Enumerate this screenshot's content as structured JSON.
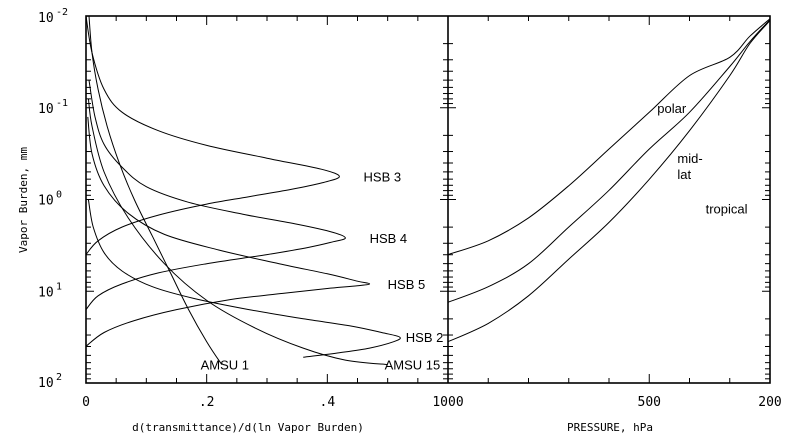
{
  "chart_data": [
    {
      "type": "line",
      "panel": "left",
      "xlabel": "d(transmittance)/d(ln Vapor Burden)",
      "ylabel": "Vapor Burden, mm",
      "xlim": [
        0,
        0.6
      ],
      "ylim_log10": [
        -2,
        2
      ],
      "y_scale": "log",
      "x_ticks": [
        {
          "value": 0,
          "label": "0"
        },
        {
          "value": 0.2,
          "label": ".2"
        },
        {
          "value": 0.4,
          "label": ".4"
        }
      ],
      "y_ticks": [
        {
          "value_log10": -2,
          "base": "10",
          "exp": "-2"
        },
        {
          "value_log10": -1,
          "base": "10",
          "exp": "-1"
        },
        {
          "value_log10": 0,
          "base": "10",
          "exp": "0"
        },
        {
          "value_log10": 1,
          "base": "10",
          "exp": "1"
        },
        {
          "value_log10": 2,
          "base": "10",
          "exp": "2"
        }
      ],
      "series": [
        {
          "name": "AMSU 1",
          "label_at": [
            0.19,
            1.8
          ],
          "points": [
            [
              0.005,
              -2.0
            ],
            [
              0.01,
              -1.6
            ],
            [
              0.02,
              -1.2
            ],
            [
              0.035,
              -0.8
            ],
            [
              0.055,
              -0.4
            ],
            [
              0.08,
              0.0
            ],
            [
              0.11,
              0.4
            ],
            [
              0.14,
              0.8
            ],
            [
              0.17,
              1.2
            ],
            [
              0.2,
              1.55
            ],
            [
              0.225,
              1.8
            ]
          ]
        },
        {
          "name": "AMSU 15",
          "label_at": [
            0.495,
            1.8
          ],
          "points": [
            [
              0.004,
              -1.1
            ],
            [
              0.01,
              -0.8
            ],
            [
              0.03,
              -0.3
            ],
            [
              0.07,
              0.2
            ],
            [
              0.13,
              0.7
            ],
            [
              0.2,
              1.1
            ],
            [
              0.28,
              1.4
            ],
            [
              0.36,
              1.62
            ],
            [
              0.43,
              1.75
            ],
            [
              0.5,
              1.8
            ]
          ]
        },
        {
          "name": "HSB 3",
          "label_at": [
            0.46,
            -0.25
          ],
          "points": [
            [
              0.0,
              0.6
            ],
            [
              0.02,
              0.45
            ],
            [
              0.06,
              0.3
            ],
            [
              0.12,
              0.17
            ],
            [
              0.2,
              0.05
            ],
            [
              0.27,
              -0.03
            ],
            [
              0.34,
              -0.11
            ],
            [
              0.39,
              -0.18
            ],
            [
              0.42,
              -0.25
            ],
            [
              0.39,
              -0.33
            ],
            [
              0.3,
              -0.45
            ],
            [
              0.2,
              -0.59
            ],
            [
              0.12,
              -0.75
            ],
            [
              0.06,
              -0.95
            ],
            [
              0.03,
              -1.2
            ],
            [
              0.01,
              -1.6
            ],
            [
              0.0,
              -2.0
            ]
          ]
        },
        {
          "name": "HSB 4",
          "label_at": [
            0.47,
            0.42
          ],
          "points": [
            [
              0.0,
              1.2
            ],
            [
              0.02,
              1.05
            ],
            [
              0.06,
              0.92
            ],
            [
              0.12,
              0.8
            ],
            [
              0.2,
              0.7
            ],
            [
              0.3,
              0.6
            ],
            [
              0.37,
              0.52
            ],
            [
              0.41,
              0.46
            ],
            [
              0.43,
              0.42
            ],
            [
              0.41,
              0.36
            ],
            [
              0.35,
              0.27
            ],
            [
              0.26,
              0.16
            ],
            [
              0.17,
              0.03
            ],
            [
              0.1,
              -0.14
            ],
            [
              0.06,
              -0.35
            ],
            [
              0.03,
              -0.6
            ],
            [
              0.015,
              -0.9
            ],
            [
              0.005,
              -1.3
            ]
          ]
        },
        {
          "name": "HSB 5",
          "label_at": [
            0.5,
            0.92
          ],
          "points": [
            [
              0.0,
              1.6
            ],
            [
              0.03,
              1.45
            ],
            [
              0.08,
              1.32
            ],
            [
              0.15,
              1.2
            ],
            [
              0.24,
              1.09
            ],
            [
              0.33,
              1.02
            ],
            [
              0.4,
              0.97
            ],
            [
              0.45,
              0.94
            ],
            [
              0.47,
              0.92
            ],
            [
              0.45,
              0.89
            ],
            [
              0.4,
              0.81
            ],
            [
              0.32,
              0.7
            ],
            [
              0.22,
              0.55
            ],
            [
              0.13,
              0.38
            ],
            [
              0.07,
              0.15
            ],
            [
              0.03,
              -0.15
            ],
            [
              0.01,
              -0.5
            ],
            [
              0.003,
              -0.9
            ]
          ]
        },
        {
          "name": "HSB 2",
          "label_at": [
            0.53,
            1.5
          ],
          "points": [
            [
              0.36,
              1.72
            ],
            [
              0.42,
              1.67
            ],
            [
              0.47,
              1.62
            ],
            [
              0.51,
              1.55
            ],
            [
              0.52,
              1.5
            ],
            [
              0.49,
              1.45
            ],
            [
              0.44,
              1.38
            ],
            [
              0.36,
              1.3
            ],
            [
              0.27,
              1.2
            ],
            [
              0.18,
              1.08
            ],
            [
              0.11,
              0.95
            ],
            [
              0.06,
              0.78
            ],
            [
              0.03,
              0.58
            ],
            [
              0.012,
              0.3
            ],
            [
              0.004,
              0.0
            ]
          ]
        }
      ]
    },
    {
      "type": "line",
      "panel": "right",
      "xlabel": "PRESSURE, hPa",
      "xlim": [
        1000,
        200
      ],
      "x_ticks": [
        {
          "value": 1000,
          "label": "1000"
        },
        {
          "value": 500,
          "label": "500"
        },
        {
          "value": 200,
          "label": "200"
        }
      ],
      "series": [
        {
          "name": "polar",
          "label_at": [
            480,
            -1.0
          ],
          "points": [
            [
              1000,
              0.6
            ],
            [
              900,
              0.45
            ],
            [
              800,
              0.2
            ],
            [
              700,
              -0.15
            ],
            [
              600,
              -0.55
            ],
            [
              500,
              -0.95
            ],
            [
              400,
              -1.35
            ],
            [
              300,
              -1.55
            ],
            [
              250,
              -1.78
            ],
            [
              200,
              -1.97
            ]
          ]
        },
        {
          "name": "mid-\nlat",
          "label_at": [
            430,
            -0.45
          ],
          "points": [
            [
              1000,
              1.12
            ],
            [
              900,
              0.95
            ],
            [
              800,
              0.7
            ],
            [
              700,
              0.3
            ],
            [
              600,
              -0.1
            ],
            [
              500,
              -0.55
            ],
            [
              400,
              -0.95
            ],
            [
              300,
              -1.45
            ],
            [
              250,
              -1.72
            ],
            [
              200,
              -1.96
            ]
          ]
        },
        {
          "name": "tropical",
          "label_at": [
            360,
            0.1
          ],
          "points": [
            [
              1000,
              1.55
            ],
            [
              900,
              1.35
            ],
            [
              800,
              1.05
            ],
            [
              700,
              0.65
            ],
            [
              600,
              0.25
            ],
            [
              500,
              -0.22
            ],
            [
              400,
              -0.75
            ],
            [
              300,
              -1.35
            ],
            [
              250,
              -1.7
            ],
            [
              200,
              -1.95
            ]
          ]
        }
      ]
    }
  ]
}
